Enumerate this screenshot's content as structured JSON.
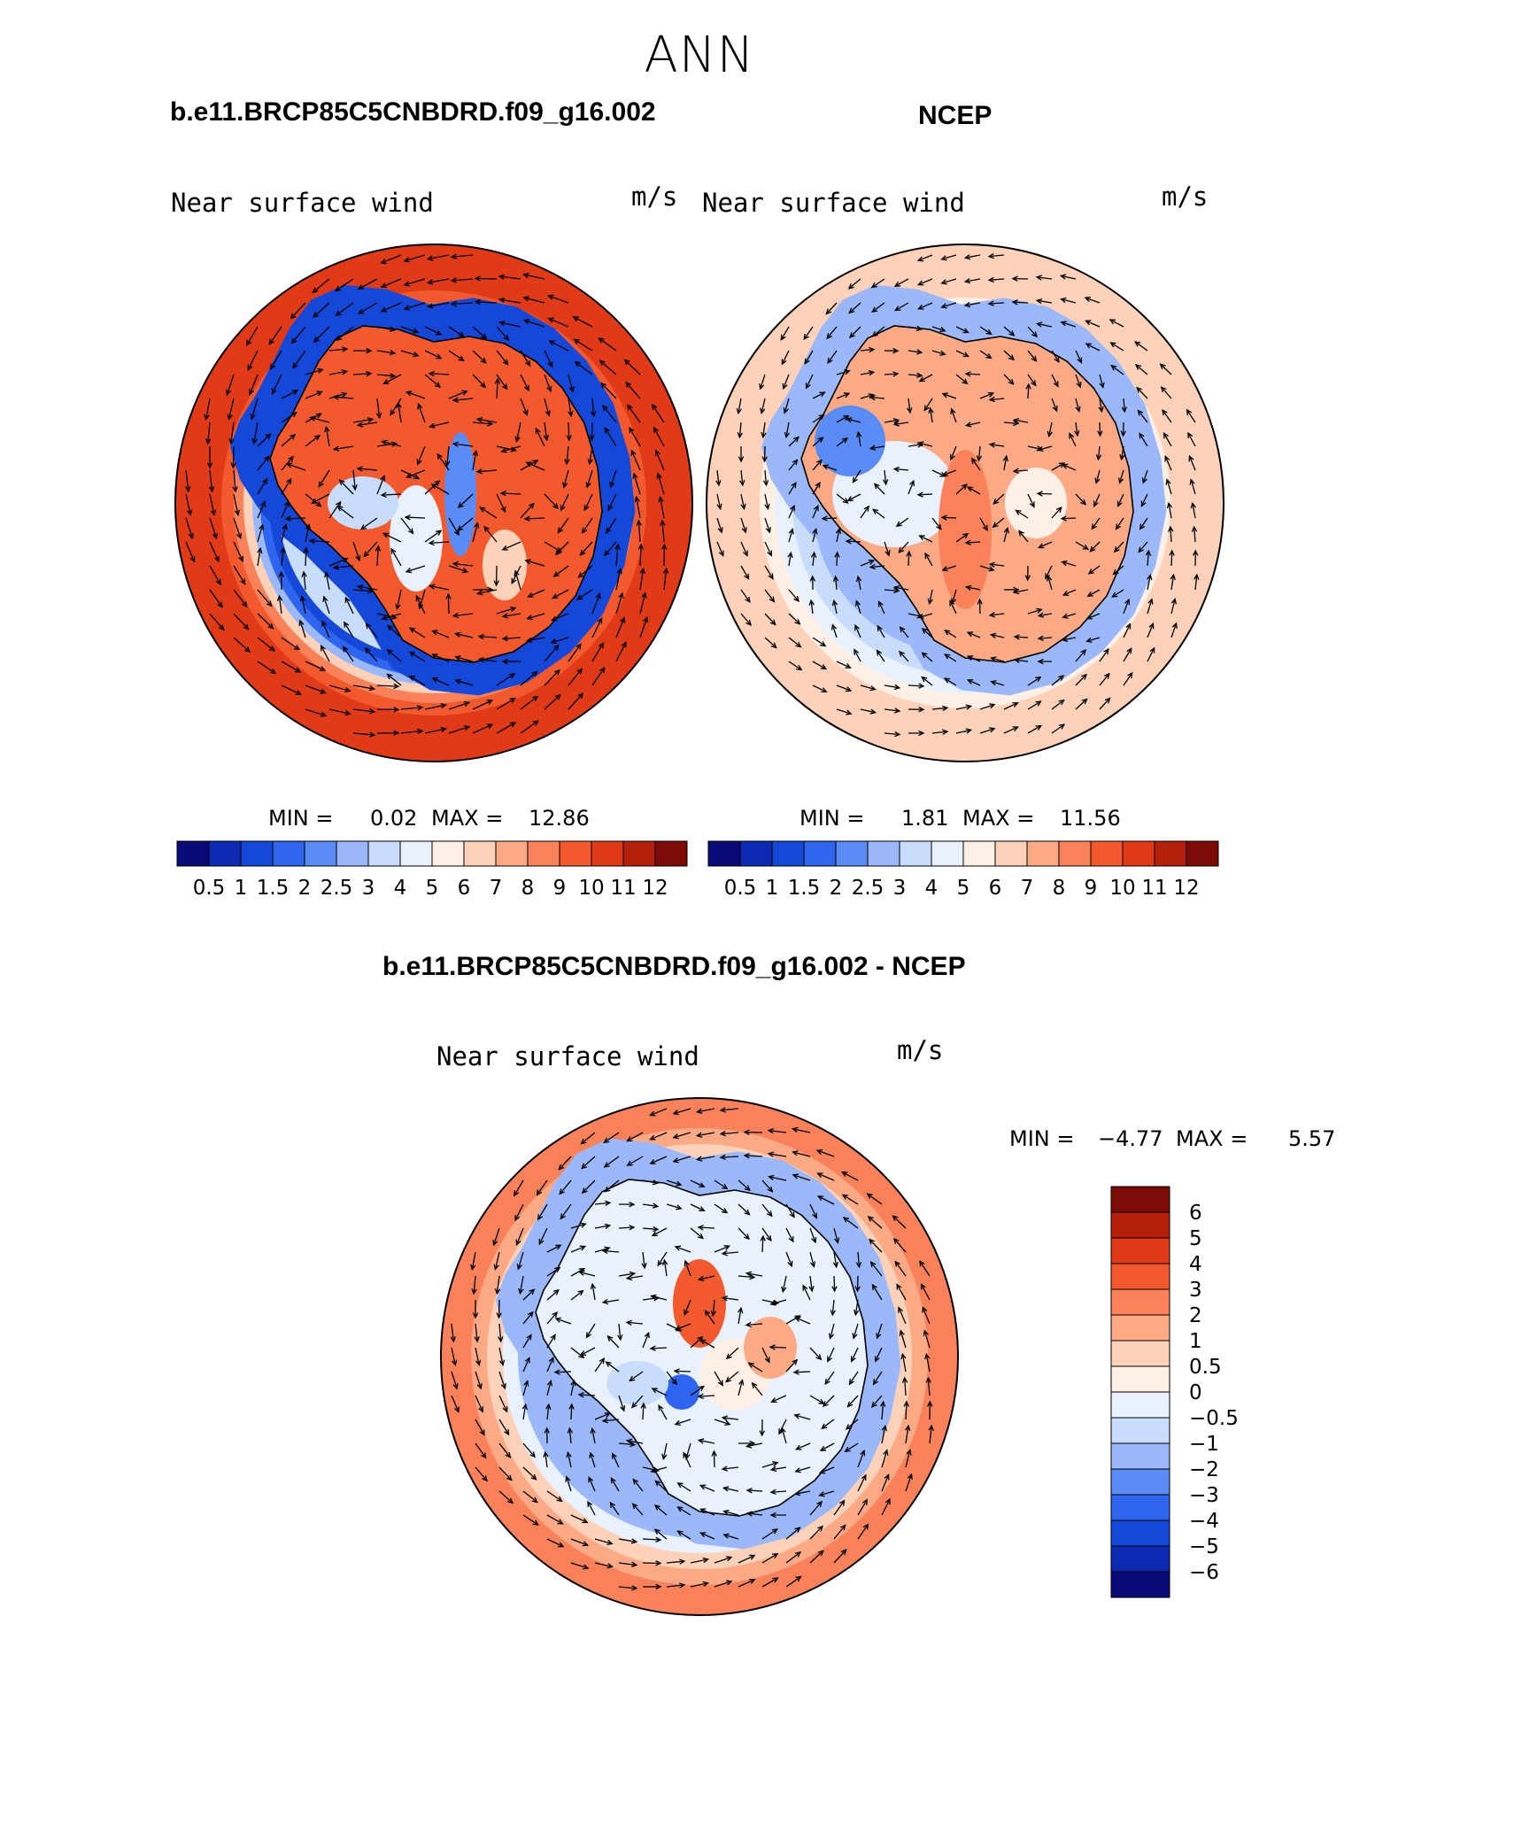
{
  "figure": {
    "season": "ANN",
    "units": "m/s"
  },
  "panels": [
    {
      "id": "model",
      "case_title": "b.e11.BRCP85C5CNBDRD.f09_g16.002",
      "field_label": "Near surface wind",
      "units": "m/s",
      "stats": {
        "min_label": "MIN =",
        "min": "0.02",
        "max_label": "MAX =",
        "max": "12.86"
      },
      "colorbar": {
        "orientation": "horizontal",
        "levels": [
          "0.5",
          "1",
          "1.5",
          "2",
          "2.5",
          "3",
          "4",
          "5",
          "6",
          "7",
          "8",
          "9",
          "10",
          "11",
          "12"
        ],
        "colors": [
          "#0a0a78",
          "#0d2ab2",
          "#1548d8",
          "#2e64ee",
          "#5a8cf5",
          "#9ab8fa",
          "#c8dcfc",
          "#e8f1fd",
          "#fff0e6",
          "#fdd2b8",
          "#fcaa86",
          "#f9825a",
          "#f25a2e",
          "#e03a17",
          "#b51f0c",
          "#7d0b05"
        ]
      }
    },
    {
      "id": "obs",
      "case_title": "NCEP",
      "field_label": "Near surface wind",
      "units": "m/s",
      "stats": {
        "min_label": "MIN =",
        "min": "1.81",
        "max_label": "MAX =",
        "max": "11.56"
      },
      "colorbar": {
        "orientation": "horizontal",
        "levels": [
          "0.5",
          "1",
          "1.5",
          "2",
          "2.5",
          "3",
          "4",
          "5",
          "6",
          "7",
          "8",
          "9",
          "10",
          "11",
          "12"
        ],
        "colors": [
          "#0a0a78",
          "#0d2ab2",
          "#1548d8",
          "#2e64ee",
          "#5a8cf5",
          "#9ab8fa",
          "#c8dcfc",
          "#e8f1fd",
          "#fff0e6",
          "#fdd2b8",
          "#fcaa86",
          "#f9825a",
          "#f25a2e",
          "#e03a17",
          "#b51f0c",
          "#7d0b05"
        ]
      }
    },
    {
      "id": "diff",
      "case_title": "b.e11.BRCP85C5CNBDRD.f09_g16.002 - NCEP",
      "field_label": "Near surface wind",
      "units": "m/s",
      "stats": {
        "min_label": "MIN =",
        "min": "−4.77",
        "max_label": "MAX =",
        "max": "5.57"
      },
      "colorbar": {
        "orientation": "vertical",
        "levels": [
          "6",
          "5",
          "4",
          "3",
          "2",
          "1",
          "0.5",
          "0",
          "−0.5",
          "−1",
          "−2",
          "−3",
          "−4",
          "−5",
          "−6"
        ],
        "colors": [
          "#7d0b05",
          "#b51f0c",
          "#e03a17",
          "#f25a2e",
          "#f9825a",
          "#fcaa86",
          "#fdd2b8",
          "#fff0e6",
          "#e8f1fd",
          "#c8dcfc",
          "#9ab8fa",
          "#5a8cf5",
          "#2e64ee",
          "#1548d8",
          "#0d2ab2",
          "#0a0a78"
        ]
      }
    }
  ]
}
